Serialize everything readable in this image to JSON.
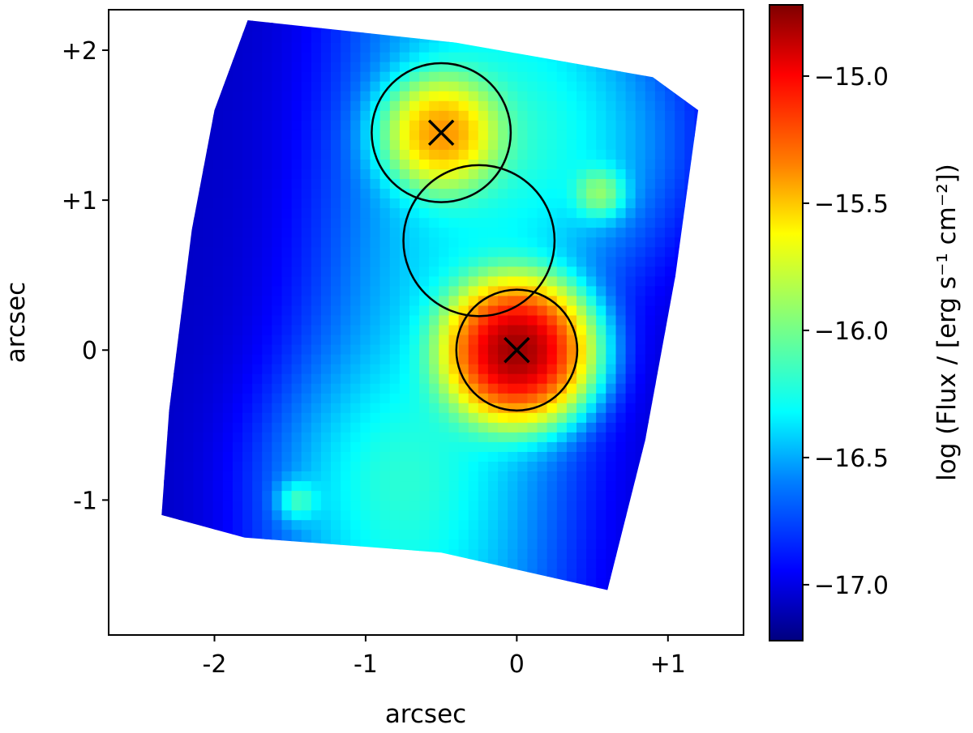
{
  "chart_data": {
    "type": "heatmap",
    "title": "",
    "xlabel": "arcsec",
    "ylabel": "arcsec",
    "xlim": [
      -2.7,
      1.5
    ],
    "ylim": [
      -1.9,
      2.27
    ],
    "x_ticks": [
      {
        "value": -2,
        "label": "-2"
      },
      {
        "value": -1,
        "label": "-1"
      },
      {
        "value": 0,
        "label": "0"
      },
      {
        "value": 1,
        "label": "+1"
      }
    ],
    "y_ticks": [
      {
        "value": 2,
        "label": "+2"
      },
      {
        "value": 1,
        "label": "+1"
      },
      {
        "value": 0,
        "label": "0"
      },
      {
        "value": -1,
        "label": "-1"
      }
    ],
    "colorbar": {
      "label": "log (Flux / [erg s⁻¹ cm⁻²])",
      "range": [
        -17.22,
        -14.72
      ],
      "ticks": [
        {
          "value": -15.0,
          "label": "−15.0"
        },
        {
          "value": -15.5,
          "label": "−15.5"
        },
        {
          "value": -16.0,
          "label": "−16.0"
        },
        {
          "value": -16.5,
          "label": "−16.5"
        },
        {
          "value": -17.0,
          "label": "−17.0"
        }
      ],
      "colormap": "jet"
    },
    "field_footprint": [
      [
        -1.78,
        2.2
      ],
      [
        -0.4,
        2.05
      ],
      [
        0.9,
        1.82
      ],
      [
        1.2,
        1.6
      ],
      [
        1.05,
        0.5
      ],
      [
        0.85,
        -0.6
      ],
      [
        0.6,
        -1.6
      ],
      [
        -0.5,
        -1.35
      ],
      [
        -1.8,
        -1.25
      ],
      [
        -2.35,
        -1.1
      ],
      [
        -2.3,
        -0.4
      ],
      [
        -2.15,
        0.8
      ],
      [
        -2.0,
        1.6
      ]
    ],
    "emission_components": [
      {
        "x": 0.0,
        "y": 0.0,
        "peak": -14.8,
        "sigma": 0.22
      },
      {
        "x": -0.5,
        "y": 1.45,
        "peak": -15.45,
        "sigma": 0.2
      },
      {
        "x": 0.55,
        "y": 1.05,
        "peak": -16.1,
        "sigma": 0.1
      },
      {
        "x": -1.45,
        "y": -1.0,
        "peak": -16.35,
        "sigma": 0.08
      }
    ],
    "apertures": [
      {
        "x": -0.5,
        "y": 1.45,
        "radius": 0.46
      },
      {
        "x": -0.25,
        "y": 0.73,
        "radius": 0.5
      },
      {
        "x": 0.0,
        "y": 0.0,
        "radius": 0.4
      }
    ],
    "markers": [
      {
        "x": -0.5,
        "y": 1.45,
        "symbol": "x"
      },
      {
        "x": 0.0,
        "y": 0.0,
        "symbol": "x"
      }
    ]
  }
}
